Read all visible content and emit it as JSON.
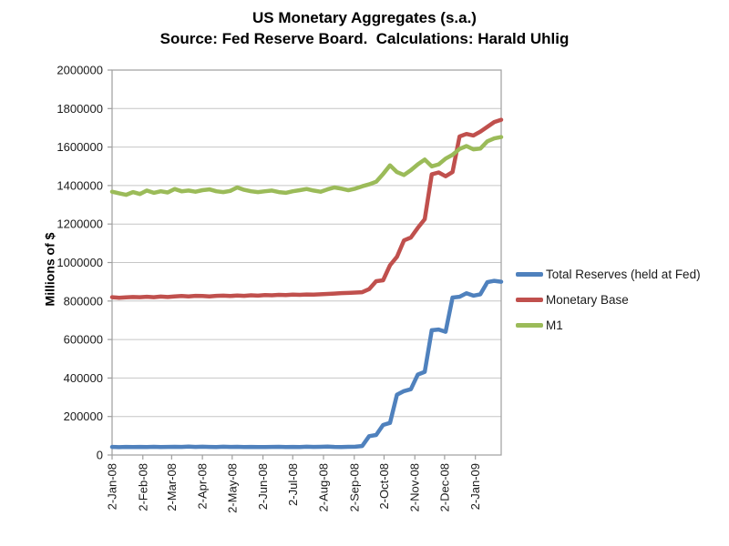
{
  "header": {
    "title_line1": "US Monetary Aggregates (s.a.)",
    "title_line2": "Source: Fed Reserve Board.  Calculations: Harald Uhlig"
  },
  "colors": {
    "total_reserves": "#4F81BD",
    "monetary_base": "#C0504D",
    "m1": "#9BBB59",
    "gridline": "#C6C6C6",
    "axis": "#9E9E9E",
    "text": "#1a1a1a"
  },
  "chart_data": {
    "type": "line",
    "title": "US Monetary Aggregates (s.a.)",
    "subtitle": "Source: Fed Reserve Board.  Calculations: Harald Uhlig",
    "xlabel": "",
    "ylabel": "Millions of $",
    "ylim": [
      0,
      2000000
    ],
    "y_tick_step": 200000,
    "y_tick_labels": [
      "0",
      "200000",
      "400000",
      "600000",
      "800000",
      "1000000",
      "1200000",
      "1400000",
      "1600000",
      "1800000",
      "2000000"
    ],
    "x_tick_labels": [
      "2-Jan-08",
      "2-Feb-08",
      "2-Mar-08",
      "2-Apr-08",
      "2-May-08",
      "2-Jun-08",
      "2-Jul-08",
      "2-Aug-08",
      "2-Sep-08",
      "2-Oct-08",
      "2-Nov-08",
      "2-Dec-08",
      "2-Jan-09"
    ],
    "x_tick_day_offsets": [
      0,
      31,
      60,
      91,
      121,
      152,
      182,
      213,
      244,
      274,
      305,
      335,
      366
    ],
    "x_frequency": "weekly",
    "x_start_label": "2-Jan-08",
    "x_week_day_step": 7,
    "x_total_days": 392,
    "grid": true,
    "legend_position": "right",
    "series": [
      {
        "name": "Total Reserves (held at Fed)",
        "color": "#4F81BD",
        "values": [
          42000,
          40800,
          42200,
          41500,
          42100,
          41800,
          42400,
          41300,
          42000,
          42600,
          41900,
          43600,
          42300,
          43100,
          42000,
          41400,
          42900,
          42200,
          42700,
          41800,
          42000,
          41300,
          41100,
          42100,
          42700,
          41800,
          42200,
          41500,
          43200,
          42000,
          42600,
          43700,
          42000,
          41800,
          42400,
          43000,
          47000,
          98000,
          104000,
          156000,
          167000,
          313000,
          332000,
          342000,
          418000,
          432000,
          648000,
          652000,
          640000,
          818000,
          822000,
          840000,
          828000,
          835000,
          898000,
          905000,
          900000
        ]
      },
      {
        "name": "Monetary Base",
        "color": "#C0504D",
        "values": [
          820000,
          817000,
          819000,
          821000,
          820000,
          822000,
          820000,
          823000,
          821000,
          824000,
          826000,
          824000,
          827000,
          826000,
          824000,
          827000,
          828000,
          826000,
          829000,
          827000,
          830000,
          828000,
          831000,
          830000,
          832000,
          831000,
          833000,
          832000,
          834000,
          833000,
          835000,
          837000,
          839000,
          841000,
          842000,
          844000,
          846000,
          862000,
          903000,
          908000,
          986000,
          1030000,
          1115000,
          1130000,
          1180000,
          1225000,
          1458000,
          1468000,
          1448000,
          1470000,
          1655000,
          1668000,
          1660000,
          1680000,
          1705000,
          1730000,
          1742000
        ]
      },
      {
        "name": "M1",
        "color": "#9BBB59",
        "values": [
          1368000,
          1360000,
          1352000,
          1366000,
          1356000,
          1374000,
          1362000,
          1370000,
          1364000,
          1382000,
          1370000,
          1374000,
          1368000,
          1376000,
          1380000,
          1370000,
          1366000,
          1372000,
          1390000,
          1378000,
          1370000,
          1366000,
          1370000,
          1374000,
          1366000,
          1362000,
          1370000,
          1376000,
          1382000,
          1374000,
          1368000,
          1380000,
          1390000,
          1384000,
          1376000,
          1384000,
          1396000,
          1406000,
          1420000,
          1460000,
          1505000,
          1470000,
          1455000,
          1480000,
          1510000,
          1535000,
          1500000,
          1510000,
          1540000,
          1560000,
          1590000,
          1605000,
          1588000,
          1592000,
          1630000,
          1645000,
          1652000
        ]
      }
    ]
  }
}
